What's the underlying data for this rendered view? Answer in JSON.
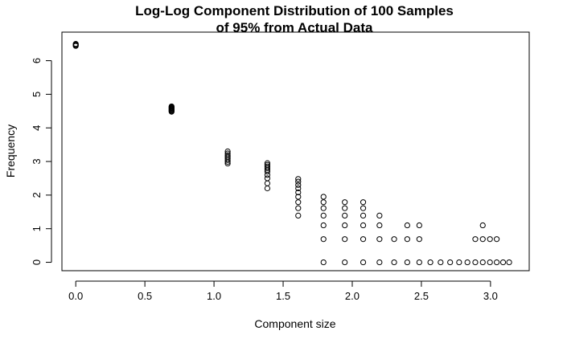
{
  "chart_data": {
    "type": "scatter",
    "title": [
      "Log-Log Component Distribution of 100 Samples",
      "of 95% from Actual Data"
    ],
    "xlabel": "Component size",
    "ylabel": "Frequency",
    "xlim": [
      -0.1,
      3.28
    ],
    "ylim": [
      -0.25,
      6.85
    ],
    "xticks": [
      0.0,
      0.5,
      1.0,
      1.5,
      2.0,
      2.5,
      3.0
    ],
    "xtick_labels": [
      "0.0",
      "0.5",
      "1.0",
      "1.5",
      "2.0",
      "2.5",
      "3.0"
    ],
    "yticks": [
      0,
      1,
      2,
      3,
      4,
      5,
      6
    ],
    "ytick_labels": [
      "0",
      "1",
      "2",
      "3",
      "4",
      "5",
      "6"
    ],
    "grid": false,
    "points": [
      {
        "x": 0.0,
        "ys": [
          6.44,
          6.46,
          6.48,
          6.5
        ]
      },
      {
        "x": 0.693,
        "ys": [
          4.48,
          4.5,
          4.52,
          4.54,
          4.56,
          4.58,
          4.6,
          4.62,
          4.64
        ]
      },
      {
        "x": 1.099,
        "ys": [
          2.94,
          2.99,
          3.04,
          3.09,
          3.14,
          3.19,
          3.24,
          3.3
        ]
      },
      {
        "x": 1.386,
        "ys": [
          2.2,
          2.35,
          2.5,
          2.6,
          2.7,
          2.75,
          2.8,
          2.85,
          2.9,
          2.95
        ]
      },
      {
        "x": 1.609,
        "ys": [
          1.39,
          1.61,
          1.79,
          1.95,
          2.08,
          2.2,
          2.3,
          2.4,
          2.48
        ]
      },
      {
        "x": 1.792,
        "ys": [
          0,
          0.69,
          1.1,
          1.39,
          1.61,
          1.79,
          1.95
        ]
      },
      {
        "x": 1.946,
        "ys": [
          0,
          0.69,
          1.1,
          1.39,
          1.61,
          1.79
        ]
      },
      {
        "x": 2.079,
        "ys": [
          0,
          0.69,
          1.1,
          1.39,
          1.61,
          1.79
        ]
      },
      {
        "x": 2.197,
        "ys": [
          0,
          0.69,
          1.1,
          1.39
        ]
      },
      {
        "x": 2.303,
        "ys": [
          0,
          0.69
        ]
      },
      {
        "x": 2.398,
        "ys": [
          0,
          0.69,
          1.1
        ]
      },
      {
        "x": 2.485,
        "ys": [
          0,
          0.69,
          1.1
        ]
      },
      {
        "x": 2.565,
        "ys": [
          0
        ]
      },
      {
        "x": 2.639,
        "ys": [
          0
        ]
      },
      {
        "x": 2.708,
        "ys": [
          0
        ]
      },
      {
        "x": 2.773,
        "ys": [
          0
        ]
      },
      {
        "x": 2.833,
        "ys": [
          0
        ]
      },
      {
        "x": 2.89,
        "ys": [
          0,
          0.69
        ]
      },
      {
        "x": 2.944,
        "ys": [
          0,
          0.69,
          1.1
        ]
      },
      {
        "x": 2.996,
        "ys": [
          0,
          0.69
        ]
      },
      {
        "x": 3.045,
        "ys": [
          0,
          0.69
        ]
      },
      {
        "x": 3.091,
        "ys": [
          0
        ]
      },
      {
        "x": 3.135,
        "ys": [
          0
        ]
      }
    ]
  }
}
